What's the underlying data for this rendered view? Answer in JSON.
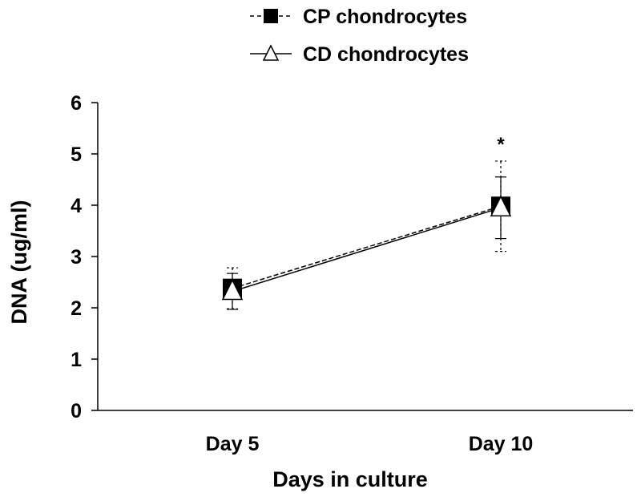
{
  "chart_data": {
    "type": "line",
    "categories": [
      "Day 5",
      "Day 10"
    ],
    "xlabel": "Days in culture",
    "ylabel": "DNA (ug/ml)",
    "ylim": [
      0,
      6
    ],
    "yticks": [
      "0",
      "1",
      "2",
      "3",
      "4",
      "5",
      "6"
    ],
    "grid": false,
    "legend_position": "top-center",
    "series": [
      {
        "name": "CP chondrocytes",
        "marker": "filled-square",
        "line": "dashed",
        "color": "#000000",
        "values": [
          2.38,
          3.98
        ],
        "error": [
          0.4,
          0.88
        ]
      },
      {
        "name": "CD chondrocytes",
        "marker": "open-triangle",
        "line": "solid",
        "color": "#000000",
        "values": [
          2.32,
          3.95
        ],
        "error": [
          0.35,
          0.6
        ]
      }
    ],
    "annotations": [
      {
        "text": "*",
        "category": "Day 10",
        "y": 5.25
      }
    ]
  }
}
